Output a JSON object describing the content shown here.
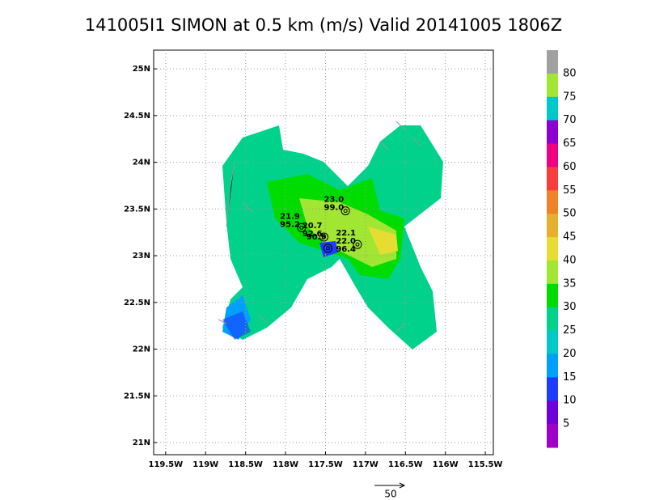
{
  "title": "141005I1 SIMON at 0.5 km (m/s) Valid 20141005 1806Z",
  "map": {
    "xlim": [
      -119.65,
      -115.4
    ],
    "ylim": [
      20.87,
      25.2
    ],
    "xticks": [
      {
        "value": -119.5,
        "label": "119.5W"
      },
      {
        "value": -119,
        "label": "119W"
      },
      {
        "value": -118.5,
        "label": "118.5W"
      },
      {
        "value": -118,
        "label": "118W"
      },
      {
        "value": -117.5,
        "label": "117.5W"
      },
      {
        "value": -117,
        "label": "117W"
      },
      {
        "value": -116.5,
        "label": "116.5W"
      },
      {
        "value": -116,
        "label": "116W"
      },
      {
        "value": -115.5,
        "label": "115.5W"
      }
    ],
    "yticks": [
      {
        "value": 25,
        "label": "25N"
      },
      {
        "value": 24.5,
        "label": "24.5N"
      },
      {
        "value": 24,
        "label": "24N"
      },
      {
        "value": 23.5,
        "label": "23.5N"
      },
      {
        "value": 23,
        "label": "23N"
      },
      {
        "value": 22.5,
        "label": "22.5N"
      },
      {
        "value": 22,
        "label": "22N"
      },
      {
        "value": 21.5,
        "label": "21.5N"
      },
      {
        "value": 21,
        "label": "21N"
      }
    ],
    "grid": true,
    "annotations": [
      {
        "lon": -117.8,
        "lat": 23.3,
        "texts": [
          "21.9",
          "95.2"
        ]
      },
      {
        "lon": -117.25,
        "lat": 23.48,
        "texts": [
          "23.0",
          "99.0"
        ]
      },
      {
        "lon": -117.52,
        "lat": 23.2,
        "texts": [
          "20.7",
          "92.6"
        ]
      },
      {
        "lon": -117.47,
        "lat": 23.08,
        "texts": [
          "90.9"
        ]
      },
      {
        "lon": -117.1,
        "lat": 23.12,
        "texts": [
          "22.1",
          "22.0",
          "96.4"
        ]
      }
    ],
    "scale_label": "50"
  },
  "colorbar": {
    "levels": [
      80,
      75,
      70,
      65,
      60,
      55,
      50,
      45,
      40,
      35,
      30,
      25,
      20,
      15,
      10,
      5
    ],
    "colors": [
      "#a0a0a0",
      "#a0e632",
      "#00c8c8",
      "#8c00d2",
      "#f00082",
      "#fa3c3c",
      "#f08228",
      "#e6af2d",
      "#e6dc32",
      "#a0e632",
      "#00dc00",
      "#00d28c",
      "#00c8c8",
      "#00a0ff",
      "#1e3cff",
      "#6e00dc",
      "#a000c8"
    ]
  }
}
